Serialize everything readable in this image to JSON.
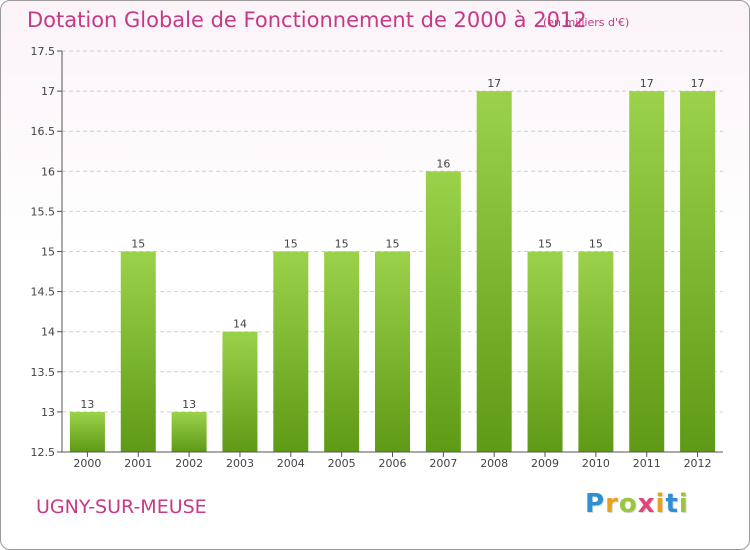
{
  "title": "Dotation Globale de Fonctionnement de 2000 à 2012",
  "subtitle": "(en milliers d'€)",
  "commune": "UGNY-SUR-MEUSE",
  "brand": {
    "text": "Proxiti",
    "letters": [
      {
        "char": "P",
        "color": "#2f8fd0"
      },
      {
        "char": "r",
        "color": "#e8a21a"
      },
      {
        "char": "o",
        "color": "#9bc53d"
      },
      {
        "char": "x",
        "color": "#e0457b"
      },
      {
        "char": "i",
        "color": "#e8a21a"
      },
      {
        "char": "t",
        "color": "#2f8fd0"
      },
      {
        "char": "i",
        "color": "#9bc53d"
      }
    ]
  },
  "colors": {
    "title": "#c53a86",
    "bar_top": "#9bd24a",
    "bar_bottom": "#5f9a16",
    "grid": "#d0d0d0",
    "axis": "#555555"
  },
  "chart_data": {
    "type": "bar",
    "categories": [
      "2000",
      "2001",
      "2002",
      "2003",
      "2004",
      "2005",
      "2006",
      "2007",
      "2008",
      "2009",
      "2010",
      "2011",
      "2012"
    ],
    "values": [
      13,
      15,
      13,
      14,
      15,
      15,
      15,
      16,
      17,
      15,
      15,
      17,
      17
    ],
    "ylim": [
      12.5,
      17.5
    ],
    "yticks": [
      12.5,
      13,
      13.5,
      14,
      14.5,
      15,
      15.5,
      16,
      16.5,
      17,
      17.5
    ],
    "ytick_labels": [
      "12.5",
      "13",
      "13.5",
      "14",
      "14.5",
      "15",
      "15.5",
      "16",
      "16.5",
      "17",
      "17.5"
    ],
    "grid": true,
    "title": "Dotation Globale de Fonctionnement de 2000 à 2012",
    "xlabel": "",
    "ylabel": ""
  }
}
